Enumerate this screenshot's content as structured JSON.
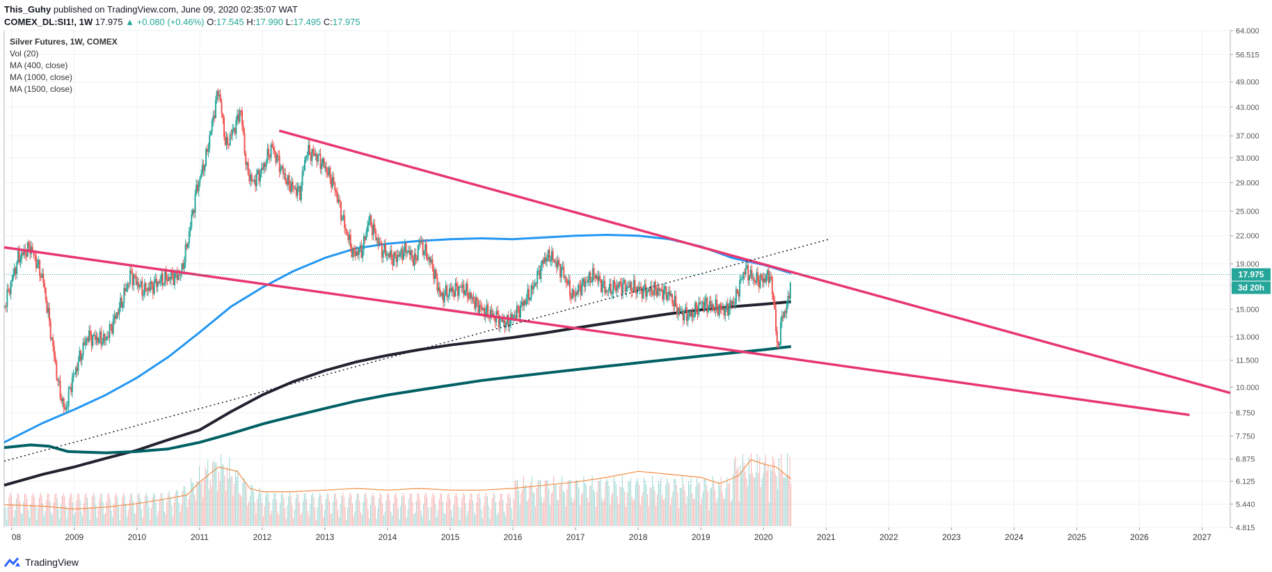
{
  "header": {
    "line1_user": "This_Guhy",
    "line1_text": "published on TradingView.com, June 09, 2020 02:35:07 WAT",
    "symbol": "COMEX_DL:SI1!, 1W",
    "last": "17.975",
    "change": "+0.080 (+0.46%)",
    "open_label": "O:",
    "open": "17.545",
    "high_label": "H:",
    "high": "17.990",
    "low_label": "L:",
    "low": "17.495",
    "close_label": "C:",
    "close": "17.975"
  },
  "legend": {
    "title": "Silver Futures, 1W, COMEX",
    "items": [
      "Vol (20)",
      "MA (400, close)",
      "MA (1000, close)",
      "MA (1500, close)"
    ]
  },
  "price_label": "17.975",
  "countdown_label": "3d 20h",
  "footer": {
    "brand": "TradingView",
    "logo_icon": "tradingview-logo-icon"
  },
  "colors": {
    "up": "#26a69a",
    "down": "#ef5350",
    "ma400": "#2196f3",
    "ma1000": "#222230",
    "ma1500": "#006064",
    "trend": "#e8366f",
    "vol_ma": "#f48c42",
    "price_tag": "#26a69a"
  },
  "chart_data": {
    "type": "line",
    "title": "Silver Futures, 1W, COMEX",
    "y_scale": "log",
    "xlim": [
      2007.88,
      2027.45
    ],
    "ylim": [
      4.815,
      64.0
    ],
    "x_ticks": [
      "08",
      "2009",
      "2010",
      "2011",
      "2012",
      "2013",
      "2014",
      "2015",
      "2016",
      "2017",
      "2018",
      "2019",
      "2020",
      "2021",
      "2022",
      "2023",
      "2024",
      "2025",
      "2026",
      "2027"
    ],
    "x_tick_values": [
      2008,
      2009,
      2010,
      2011,
      2012,
      2013,
      2014,
      2015,
      2016,
      2017,
      2018,
      2019,
      2020,
      2021,
      2022,
      2023,
      2024,
      2025,
      2026,
      2027
    ],
    "y_ticks": [
      "64.000",
      "56.515",
      "49.000",
      "43.000",
      "37.000",
      "33.000",
      "29.000",
      "25.000",
      "22.000",
      "19.000",
      "17.000",
      "15.000",
      "13.000",
      "11.500",
      "10.000",
      "8.750",
      "7.750",
      "6.875",
      "6.125",
      "5.440",
      "4.815"
    ],
    "y_tick_values": [
      64.0,
      56.515,
      49.0,
      43.0,
      37.0,
      33.0,
      29.0,
      25.0,
      22.0,
      19.0,
      17.0,
      15.0,
      13.0,
      11.5,
      10.0,
      8.75,
      7.75,
      6.875,
      6.125,
      5.44,
      4.815
    ],
    "price_path": [
      [
        2007.88,
        15.2
      ],
      [
        2008.1,
        19.5
      ],
      [
        2008.3,
        20.8
      ],
      [
        2008.5,
        17.5
      ],
      [
        2008.6,
        14.0
      ],
      [
        2008.75,
        10.0
      ],
      [
        2008.85,
        8.8
      ],
      [
        2008.95,
        10.2
      ],
      [
        2009.2,
        13.0
      ],
      [
        2009.5,
        12.8
      ],
      [
        2009.75,
        15.5
      ],
      [
        2009.9,
        18.0
      ],
      [
        2010.1,
        16.5
      ],
      [
        2010.4,
        17.5
      ],
      [
        2010.7,
        18.0
      ],
      [
        2010.8,
        21.0
      ],
      [
        2010.95,
        28.0
      ],
      [
        2011.1,
        33.0
      ],
      [
        2011.3,
        47.5
      ],
      [
        2011.42,
        35.0
      ],
      [
        2011.6,
        40.0
      ],
      [
        2011.65,
        43.0
      ],
      [
        2011.75,
        31.0
      ],
      [
        2011.85,
        29.0
      ],
      [
        2012.0,
        31.0
      ],
      [
        2012.15,
        35.0
      ],
      [
        2012.4,
        29.0
      ],
      [
        2012.6,
        27.5
      ],
      [
        2012.7,
        34.0
      ],
      [
        2012.85,
        33.5
      ],
      [
        2013.0,
        31.5
      ],
      [
        2013.15,
        28.5
      ],
      [
        2013.3,
        23.5
      ],
      [
        2013.45,
        20.0
      ],
      [
        2013.6,
        20.5
      ],
      [
        2013.7,
        24.0
      ],
      [
        2013.9,
        20.5
      ],
      [
        2014.1,
        19.5
      ],
      [
        2014.3,
        20.5
      ],
      [
        2014.45,
        19.2
      ],
      [
        2014.5,
        21.5
      ],
      [
        2014.7,
        19.0
      ],
      [
        2014.85,
        16.0
      ],
      [
        2015.0,
        16.5
      ],
      [
        2015.2,
        16.8
      ],
      [
        2015.4,
        15.5
      ],
      [
        2015.55,
        14.8
      ],
      [
        2015.7,
        14.5
      ],
      [
        2015.9,
        13.9
      ],
      [
        2016.1,
        15.0
      ],
      [
        2016.3,
        16.5
      ],
      [
        2016.5,
        19.5
      ],
      [
        2016.6,
        19.8
      ],
      [
        2016.8,
        18.2
      ],
      [
        2016.95,
        16.0
      ],
      [
        2017.1,
        17.0
      ],
      [
        2017.3,
        18.0
      ],
      [
        2017.5,
        16.5
      ],
      [
        2017.7,
        17.0
      ],
      [
        2017.9,
        16.8
      ],
      [
        2018.1,
        16.5
      ],
      [
        2018.3,
        16.6
      ],
      [
        2018.5,
        16.2
      ],
      [
        2018.65,
        14.8
      ],
      [
        2018.85,
        14.5
      ],
      [
        2019.0,
        15.5
      ],
      [
        2019.2,
        15.2
      ],
      [
        2019.4,
        14.9
      ],
      [
        2019.55,
        15.8
      ],
      [
        2019.7,
        18.5
      ],
      [
        2019.85,
        17.5
      ],
      [
        2020.0,
        17.5
      ],
      [
        2020.1,
        18.0
      ],
      [
        2020.18,
        15.0
      ],
      [
        2020.22,
        12.0
      ],
      [
        2020.3,
        14.5
      ],
      [
        2020.38,
        15.2
      ],
      [
        2020.44,
        17.975
      ]
    ],
    "series": [
      {
        "name": "MA (400, close)",
        "points": [
          [
            2007.88,
            7.5
          ],
          [
            2008.5,
            8.3
          ],
          [
            2009.0,
            8.9
          ],
          [
            2009.5,
            9.6
          ],
          [
            2010.0,
            10.5
          ],
          [
            2010.5,
            11.7
          ],
          [
            2011.0,
            13.3
          ],
          [
            2011.5,
            15.2
          ],
          [
            2012.0,
            16.8
          ],
          [
            2012.5,
            18.3
          ],
          [
            2013.0,
            19.6
          ],
          [
            2013.5,
            20.6
          ],
          [
            2014.0,
            21.1
          ],
          [
            2014.5,
            21.4
          ],
          [
            2015.0,
            21.6
          ],
          [
            2015.5,
            21.7
          ],
          [
            2016.0,
            21.6
          ],
          [
            2016.5,
            21.8
          ],
          [
            2017.0,
            22.0
          ],
          [
            2017.5,
            22.1
          ],
          [
            2018.0,
            22.0
          ],
          [
            2018.5,
            21.6
          ],
          [
            2019.0,
            20.8
          ],
          [
            2019.5,
            19.6
          ],
          [
            2020.0,
            18.9
          ],
          [
            2020.44,
            18.1
          ]
        ]
      },
      {
        "name": "MA (1000, close)",
        "points": [
          [
            2007.88,
            6.0
          ],
          [
            2008.5,
            6.35
          ],
          [
            2009.0,
            6.6
          ],
          [
            2009.5,
            6.9
          ],
          [
            2010.0,
            7.2
          ],
          [
            2010.5,
            7.6
          ],
          [
            2011.0,
            8.0
          ],
          [
            2011.5,
            8.8
          ],
          [
            2012.0,
            9.6
          ],
          [
            2012.5,
            10.3
          ],
          [
            2013.0,
            10.9
          ],
          [
            2013.5,
            11.4
          ],
          [
            2014.0,
            11.8
          ],
          [
            2014.5,
            12.15
          ],
          [
            2015.0,
            12.45
          ],
          [
            2015.5,
            12.7
          ],
          [
            2016.0,
            12.95
          ],
          [
            2016.5,
            13.25
          ],
          [
            2017.0,
            13.6
          ],
          [
            2017.5,
            13.95
          ],
          [
            2018.0,
            14.3
          ],
          [
            2018.5,
            14.65
          ],
          [
            2019.0,
            14.95
          ],
          [
            2019.5,
            15.2
          ],
          [
            2020.0,
            15.4
          ],
          [
            2020.44,
            15.6
          ]
        ]
      },
      {
        "name": "MA (1500, close)",
        "points": [
          [
            2007.88,
            7.3
          ],
          [
            2008.3,
            7.4
          ],
          [
            2008.6,
            7.35
          ],
          [
            2008.9,
            7.15
          ],
          [
            2009.5,
            7.1
          ],
          [
            2010.0,
            7.15
          ],
          [
            2010.5,
            7.25
          ],
          [
            2011.0,
            7.5
          ],
          [
            2011.5,
            7.85
          ],
          [
            2012.0,
            8.25
          ],
          [
            2012.5,
            8.6
          ],
          [
            2013.0,
            8.95
          ],
          [
            2013.5,
            9.3
          ],
          [
            2014.0,
            9.6
          ],
          [
            2014.5,
            9.85
          ],
          [
            2015.0,
            10.1
          ],
          [
            2015.5,
            10.35
          ],
          [
            2016.0,
            10.55
          ],
          [
            2016.5,
            10.75
          ],
          [
            2017.0,
            10.95
          ],
          [
            2017.5,
            11.15
          ],
          [
            2018.0,
            11.35
          ],
          [
            2018.5,
            11.55
          ],
          [
            2019.0,
            11.75
          ],
          [
            2019.5,
            11.95
          ],
          [
            2020.0,
            12.15
          ],
          [
            2020.44,
            12.35
          ]
        ]
      }
    ],
    "drawings": [
      {
        "points": [
          [
            2012.27,
            38.0
          ],
          [
            2027.45,
            9.7
          ]
        ]
      },
      {
        "points": [
          [
            2007.88,
            20.7
          ],
          [
            2026.8,
            8.65
          ]
        ]
      },
      {
        "points": [
          [
            2007.88,
            6.8
          ],
          [
            2021.05,
            21.6
          ]
        ],
        "dashed": true
      }
    ],
    "volume": {
      "ma_points": [
        [
          2007.88,
          5.42
        ],
        [
          2008.5,
          5.38
        ],
        [
          2009.0,
          5.3
        ],
        [
          2009.5,
          5.35
        ],
        [
          2010.0,
          5.45
        ],
        [
          2010.5,
          5.6
        ],
        [
          2010.8,
          5.7
        ],
        [
          2011.0,
          6.1
        ],
        [
          2011.3,
          6.6
        ],
        [
          2011.6,
          6.45
        ],
        [
          2011.8,
          5.9
        ],
        [
          2012.0,
          5.8
        ],
        [
          2012.5,
          5.8
        ],
        [
          2013.0,
          5.85
        ],
        [
          2013.5,
          5.9
        ],
        [
          2014.0,
          5.85
        ],
        [
          2014.5,
          5.9
        ],
        [
          2015.0,
          5.85
        ],
        [
          2015.5,
          5.85
        ],
        [
          2016.0,
          5.9
        ],
        [
          2016.5,
          6.0
        ],
        [
          2017.0,
          6.1
        ],
        [
          2017.5,
          6.25
        ],
        [
          2018.0,
          6.45
        ],
        [
          2018.5,
          6.35
        ],
        [
          2019.0,
          6.25
        ],
        [
          2019.3,
          6.05
        ],
        [
          2019.6,
          6.3
        ],
        [
          2019.8,
          6.85
        ],
        [
          2020.0,
          6.7
        ],
        [
          2020.2,
          6.6
        ],
        [
          2020.44,
          6.2
        ]
      ]
    }
  }
}
